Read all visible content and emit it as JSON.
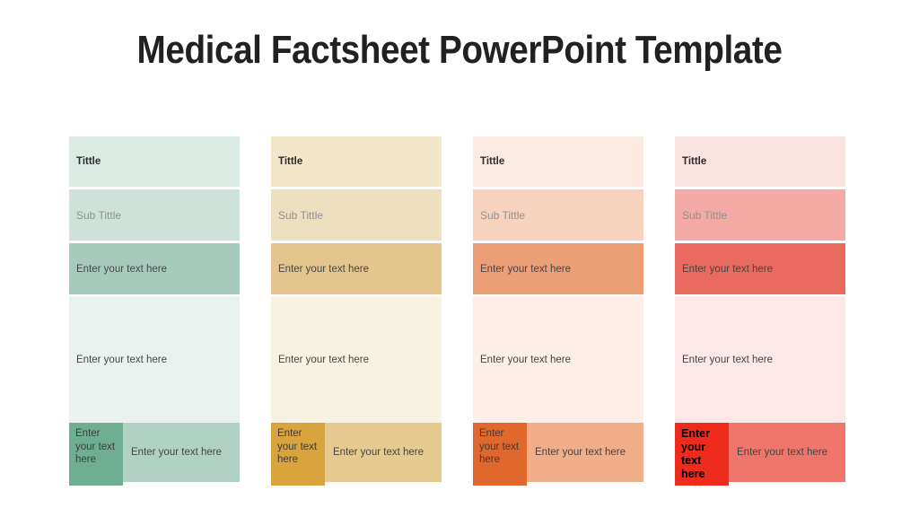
{
  "slide": {
    "title": "Medical Factsheet PowerPoint Template"
  },
  "cards": [
    {
      "theme": "teal",
      "title": "Tittle",
      "subtitle": "Sub Tittle",
      "highlight": "Enter your text here",
      "body": "Enter your text here",
      "footer_small": "Enter your text here",
      "footer_wide": "Enter your text here",
      "colors": {
        "title_bg": "#dceae4",
        "subtitle_bg": "#cfe2d9",
        "highlight_bg": "#a6cbbd",
        "body_bg": "#e9f2ee",
        "footer_small_bg": "#70ae93",
        "footer_wide_bg": "#b0d1c3"
      }
    },
    {
      "theme": "tan",
      "title": "Tittle",
      "subtitle": "Sub Tittle",
      "highlight": "Enter your text here",
      "body": "Enter your text here",
      "footer_small": "Enter your text here",
      "footer_wide": "Enter your text here",
      "colors": {
        "title_bg": "#f3e7ca",
        "subtitle_bg": "#eee0bf",
        "highlight_bg": "#e3c58d",
        "body_bg": "#f8f2e2",
        "footer_small_bg": "#d9a43d",
        "footer_wide_bg": "#e7ca90"
      }
    },
    {
      "theme": "orange",
      "title": "Tittle",
      "subtitle": "Sub Tittle",
      "highlight": "Enter your text here",
      "body": "Enter your text here",
      "footer_small": "Enter your text here",
      "footer_wide": "Enter your text here",
      "colors": {
        "title_bg": "#fcebe2",
        "subtitle_bg": "#f7d2bc",
        "highlight_bg": "#ec9f76",
        "body_bg": "#fdeee7",
        "footer_small_bg": "#e0682c",
        "footer_wide_bg": "#f0ae8a"
      }
    },
    {
      "theme": "red",
      "title": "Tittle",
      "subtitle": "Sub Tittle",
      "highlight": "Enter your text here",
      "body": "Enter your text here",
      "footer_small": "Enter your text here",
      "footer_wide": "Enter your text here",
      "colors": {
        "title_bg": "#fbe3e2",
        "subtitle_bg": "#f3a9a4",
        "highlight_bg": "#e96a5f",
        "body_bg": "#fbe8e7",
        "footer_small_bg": "#ee2b1c",
        "footer_wide_bg": "#f0756b"
      }
    }
  ]
}
